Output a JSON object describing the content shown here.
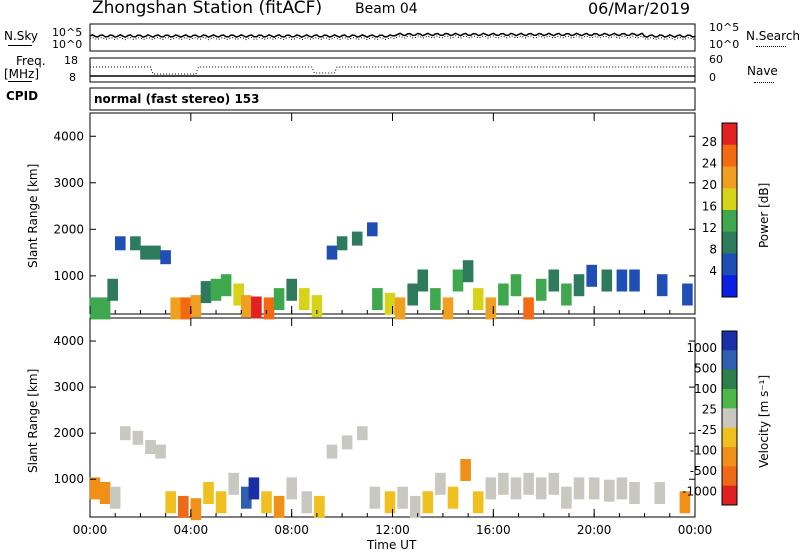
{
  "title": {
    "station": "Zhongshan Station (fitACF)",
    "beam": "Beam 04",
    "date": "06/Mar/2019"
  },
  "top_panels": {
    "nsky_label": "N.Sky",
    "nsky_ticks": [
      "10^5",
      "10^0"
    ],
    "nsearch_label": "N.Search",
    "nsearch_ticks": [
      "10^5",
      "10^0"
    ],
    "freq_label": "Freq.",
    "freq_unit": "[MHz]",
    "freq_ticks": [
      "18",
      "8"
    ],
    "nave_label": "Nave",
    "nave_ticks": [
      "60",
      "0"
    ],
    "cpid_label": "CPID",
    "cpid_text": "normal (fast stereo) 153"
  },
  "power_panel": {
    "ylabel": "Slant Range [km]",
    "yticks": [
      "4000",
      "3000",
      "2000",
      "1000"
    ],
    "colorbar_label": "Power [dB]",
    "colorbar_ticks": [
      "28",
      "24",
      "20",
      "16",
      "12",
      "8",
      "4"
    ],
    "colors": [
      "#0a1ee6",
      "#1f4fb4",
      "#2e7a5c",
      "#3fa84e",
      "#d7d21a",
      "#f0a020",
      "#f36a10",
      "#e22222"
    ]
  },
  "velocity_panel": {
    "ylabel": "Slant Range [km]",
    "yticks": [
      "4000",
      "3000",
      "2000",
      "1000"
    ],
    "colorbar_label": "Velocity [m s⁻¹]",
    "colorbar_ticks": [
      "1000",
      "500",
      "100",
      "25",
      "-25",
      "-100",
      "-500",
      "-1000"
    ],
    "colors": [
      "#1a2ea8",
      "#2f5fb0",
      "#2e7e4c",
      "#4db848",
      "#c8c8c0",
      "#f0c020",
      "#f09018",
      "#ef6a18",
      "#e02020"
    ]
  },
  "xaxis": {
    "label": "Time UT",
    "ticks": [
      "00:00",
      "04:00",
      "08:00",
      "12:00",
      "16:00",
      "20:00",
      "00:00"
    ]
  },
  "chart_data": [
    {
      "type": "heatmap",
      "title": "Power [dB]",
      "xlabel": "Time UT",
      "ylabel": "Slant Range [km]",
      "xlim": [
        0,
        24
      ],
      "ylim": [
        180,
        4500
      ],
      "zlim": [
        0,
        30
      ],
      "x_units": "hours UT",
      "y_units": "km",
      "cells": [
        [
          0.2,
          300,
          12
        ],
        [
          0.6,
          300,
          14
        ],
        [
          0.9,
          700,
          8
        ],
        [
          1.2,
          1700,
          6
        ],
        [
          1.8,
          1700,
          8
        ],
        [
          2.2,
          1500,
          10
        ],
        [
          2.6,
          1500,
          8
        ],
        [
          3.0,
          1400,
          6
        ],
        [
          3.4,
          300,
          20
        ],
        [
          3.8,
          300,
          26
        ],
        [
          4.2,
          350,
          22
        ],
        [
          4.6,
          650,
          10
        ],
        [
          5.0,
          700,
          12
        ],
        [
          5.4,
          800,
          14
        ],
        [
          5.9,
          600,
          16
        ],
        [
          6.2,
          350,
          22
        ],
        [
          6.6,
          320,
          28
        ],
        [
          7.1,
          300,
          26
        ],
        [
          7.5,
          500,
          14
        ],
        [
          8.0,
          700,
          10
        ],
        [
          8.5,
          500,
          16
        ],
        [
          9.0,
          350,
          18
        ],
        [
          9.6,
          1500,
          6
        ],
        [
          10.0,
          1700,
          10
        ],
        [
          10.6,
          1800,
          8
        ],
        [
          11.2,
          2000,
          6
        ],
        [
          11.4,
          500,
          12
        ],
        [
          11.9,
          400,
          18
        ],
        [
          12.3,
          300,
          22
        ],
        [
          12.8,
          600,
          10
        ],
        [
          13.2,
          900,
          8
        ],
        [
          13.7,
          500,
          14
        ],
        [
          14.2,
          300,
          20
        ],
        [
          14.6,
          900,
          12
        ],
        [
          15.0,
          1100,
          8
        ],
        [
          15.4,
          500,
          16
        ],
        [
          15.9,
          300,
          22
        ],
        [
          16.4,
          600,
          14
        ],
        [
          16.9,
          800,
          12
        ],
        [
          17.4,
          300,
          26
        ],
        [
          17.9,
          700,
          14
        ],
        [
          18.4,
          900,
          10
        ],
        [
          18.9,
          600,
          12
        ],
        [
          19.4,
          800,
          8
        ],
        [
          19.9,
          1000,
          6
        ],
        [
          20.5,
          900,
          8
        ],
        [
          21.1,
          900,
          6
        ],
        [
          21.6,
          900,
          4
        ],
        [
          22.7,
          800,
          6
        ],
        [
          23.7,
          600,
          4
        ]
      ]
    },
    {
      "type": "heatmap",
      "title": "Velocity [m s⁻¹]",
      "xlabel": "Time UT",
      "ylabel": "Slant Range [km]",
      "xlim": [
        0,
        24
      ],
      "ylim": [
        180,
        4500
      ],
      "zlim": [
        -1000,
        1000
      ],
      "x_units": "hours UT",
      "y_units": "km",
      "cells": [
        [
          0.2,
          800,
          -400
        ],
        [
          0.6,
          700,
          -500
        ],
        [
          1.0,
          600,
          60
        ],
        [
          1.4,
          2000,
          0
        ],
        [
          1.9,
          1900,
          0
        ],
        [
          2.4,
          1700,
          0
        ],
        [
          2.8,
          1600,
          0
        ],
        [
          3.2,
          500,
          -150
        ],
        [
          3.7,
          400,
          -600
        ],
        [
          4.2,
          350,
          -500
        ],
        [
          4.7,
          700,
          -200
        ],
        [
          5.2,
          500,
          -300
        ],
        [
          5.7,
          900,
          80
        ],
        [
          6.2,
          600,
          600
        ],
        [
          6.5,
          800,
          900
        ],
        [
          7.0,
          500,
          -300
        ],
        [
          7.5,
          400,
          -500
        ],
        [
          8.0,
          800,
          100
        ],
        [
          8.6,
          500,
          60
        ],
        [
          9.1,
          400,
          -200
        ],
        [
          9.6,
          1600,
          0
        ],
        [
          10.2,
          1800,
          0
        ],
        [
          10.8,
          2000,
          0
        ],
        [
          11.3,
          600,
          80
        ],
        [
          11.9,
          500,
          -300
        ],
        [
          12.4,
          600,
          -100
        ],
        [
          12.9,
          400,
          60
        ],
        [
          13.4,
          500,
          -200
        ],
        [
          13.9,
          900,
          80
        ],
        [
          14.4,
          600,
          -150
        ],
        [
          14.9,
          1200,
          -500
        ],
        [
          15.4,
          500,
          -200
        ],
        [
          15.9,
          800,
          0
        ],
        [
          16.4,
          900,
          0
        ],
        [
          16.9,
          800,
          0
        ],
        [
          17.4,
          900,
          0
        ],
        [
          17.9,
          800,
          0
        ],
        [
          18.4,
          900,
          0
        ],
        [
          18.9,
          600,
          -100
        ],
        [
          19.4,
          800,
          0
        ],
        [
          20.0,
          800,
          0
        ],
        [
          20.6,
          750,
          0
        ],
        [
          21.1,
          800,
          0
        ],
        [
          21.6,
          700,
          0
        ],
        [
          22.6,
          700,
          0
        ],
        [
          23.6,
          500,
          -400
        ]
      ]
    }
  ]
}
